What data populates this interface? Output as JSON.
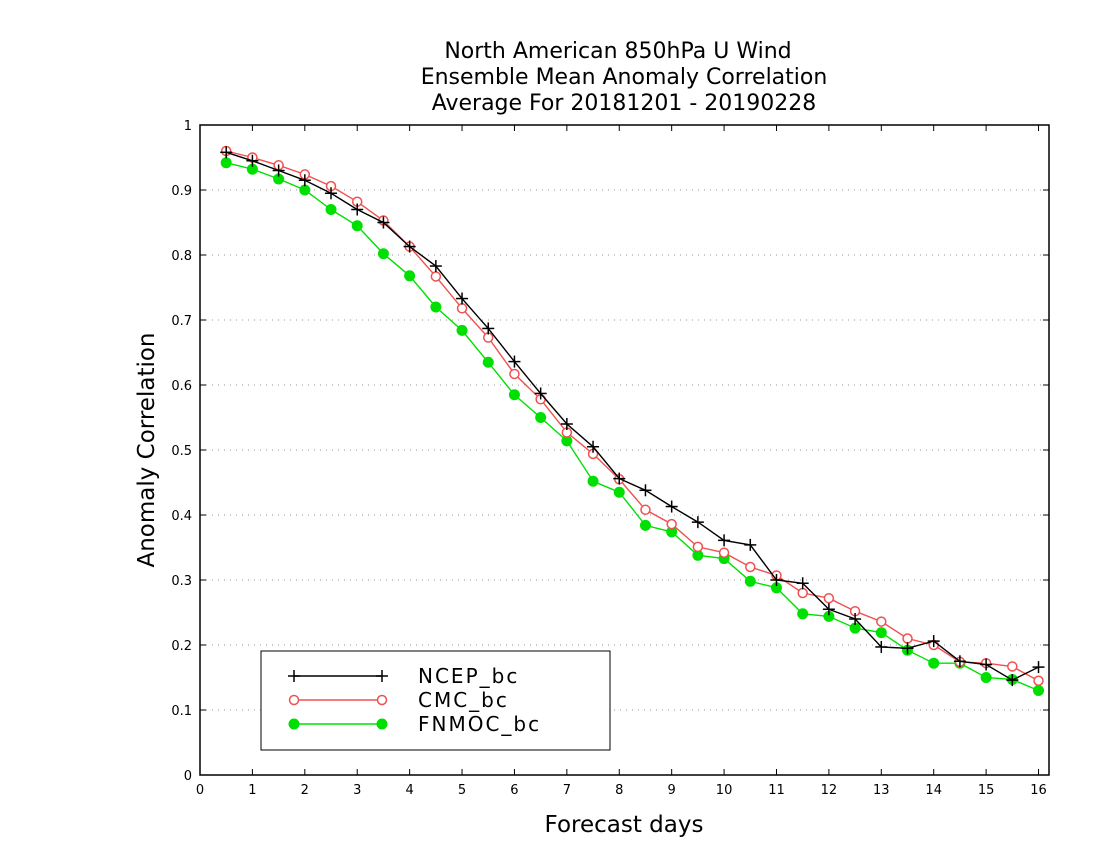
{
  "chart_data": {
    "type": "line",
    "title": [
      "North American 850hPa U Wind",
      "Ensemble Mean Anomaly Correlation",
      "Average For 20181201 - 20190228"
    ],
    "xlabel": "Forecast days",
    "ylabel": "Anomaly Correlation",
    "xlim": [
      0,
      16.2
    ],
    "ylim": [
      0,
      1
    ],
    "xticks": [
      0,
      1,
      2,
      3,
      4,
      5,
      6,
      7,
      8,
      9,
      10,
      11,
      12,
      13,
      14,
      15,
      16
    ],
    "yticks": [
      0,
      0.1,
      0.2,
      0.3,
      0.4,
      0.5,
      0.6,
      0.7,
      0.8,
      0.9,
      1
    ],
    "ytick_labels": [
      "0",
      "0.1",
      "0.2",
      "0.3",
      "0.4",
      "0.5",
      "0.6",
      "0.7",
      "0.8",
      "0.9",
      "1"
    ],
    "grid": true,
    "legend_position": "bottom-left",
    "x": [
      0.5,
      1,
      1.5,
      2,
      2.5,
      3,
      3.5,
      4,
      4.5,
      5,
      5.5,
      6,
      6.5,
      7,
      7.5,
      8,
      8.5,
      9,
      9.5,
      10,
      10.5,
      11,
      11.5,
      12,
      12.5,
      13,
      13.5,
      14,
      14.5,
      15,
      15.5,
      16
    ],
    "series": [
      {
        "name": "NCEP_bc",
        "color": "#000000",
        "marker": "plus",
        "values": [
          0.958,
          0.945,
          0.93,
          0.915,
          0.895,
          0.87,
          0.85,
          0.813,
          0.783,
          0.733,
          0.687,
          0.636,
          0.587,
          0.54,
          0.505,
          0.456,
          0.438,
          0.413,
          0.389,
          0.361,
          0.354,
          0.3,
          0.295,
          0.255,
          0.24,
          0.197,
          0.195,
          0.206,
          0.175,
          0.17,
          0.146,
          0.166
        ]
      },
      {
        "name": "CMC_bc",
        "color": "#f05050",
        "marker": "open-circle",
        "values": [
          0.96,
          0.95,
          0.938,
          0.924,
          0.906,
          0.882,
          0.853,
          0.813,
          0.767,
          0.718,
          0.673,
          0.617,
          0.578,
          0.527,
          0.494,
          0.455,
          0.408,
          0.386,
          0.351,
          0.342,
          0.32,
          0.307,
          0.28,
          0.272,
          0.252,
          0.236,
          0.21,
          0.2,
          0.174,
          0.172,
          0.167,
          0.145
        ]
      },
      {
        "name": "FNMOC_bc",
        "color": "#00e000",
        "marker": "filled-circle",
        "values": [
          0.942,
          0.932,
          0.917,
          0.9,
          0.87,
          0.845,
          0.802,
          0.768,
          0.72,
          0.684,
          0.635,
          0.585,
          0.55,
          0.514,
          0.452,
          0.435,
          0.384,
          0.374,
          0.338,
          0.333,
          0.298,
          0.288,
          0.248,
          0.244,
          0.226,
          0.219,
          0.192,
          0.172,
          0.172,
          0.15,
          0.147,
          0.13
        ]
      }
    ]
  }
}
